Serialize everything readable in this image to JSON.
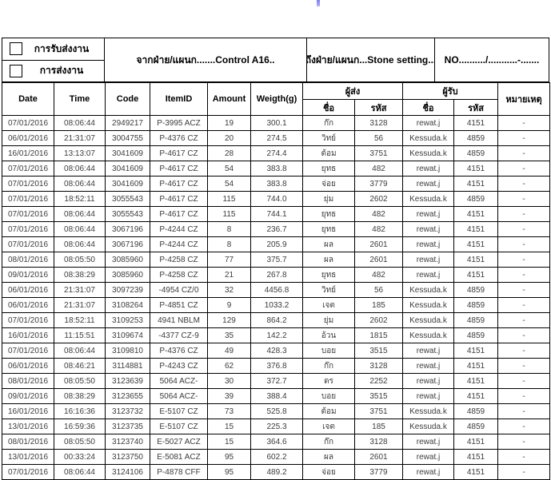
{
  "page": {
    "cursor_mark_color": "#7c7cf2"
  },
  "form_header": {
    "receive_checkbox_label": "การรับส่งงาน",
    "send_checkbox_label": "การส่งงาน",
    "from_department": "จากฝ่าย/แผนก.......Control A16..",
    "to_department": "ถึงฝ่าย/แผนก...Stone setting...",
    "doc_no": "NO........../...........-......."
  },
  "table": {
    "columns": {
      "date": "Date",
      "time": "Time",
      "code": "Code",
      "item_id": "ItemID",
      "amount": "Amount",
      "weight": "Weigth(g)",
      "sender_group": "ผู้ส่ง",
      "receiver_group": "ผู้รับ",
      "name_sub": "ชื่อ",
      "code_sub": "รหัส",
      "remark": "หมายเหตุ"
    },
    "rows": [
      [
        "07/01/2016",
        "08:06:44",
        "2949217",
        "P-3995 ACZ",
        "19",
        "300.1",
        "ก๊ก",
        "3128",
        "rewat.j",
        "4151",
        "-"
      ],
      [
        "06/01/2016",
        "21:31:07",
        "3004755",
        "P-4376 CZ",
        "20",
        "274.5",
        "วิทย์",
        "56",
        "Kessuda.k",
        "4859",
        "-"
      ],
      [
        "16/01/2016",
        "13:13:07",
        "3041609",
        "P-4617 CZ",
        "28",
        "274.4",
        "ต้อม",
        "3751",
        "Kessuda.k",
        "4859",
        "-"
      ],
      [
        "07/01/2016",
        "08:06:44",
        "3041609",
        "P-4617 CZ",
        "54",
        "383.8",
        "ยุทธ",
        "482",
        "rewat.j",
        "4151",
        "-"
      ],
      [
        "07/01/2016",
        "08:06:44",
        "3041609",
        "P-4617 CZ",
        "54",
        "383.8",
        "จ่อย",
        "3779",
        "rewat.j",
        "4151",
        "-"
      ],
      [
        "07/01/2016",
        "18:52:11",
        "3055543",
        "P-4617 CZ",
        "115",
        "744.0",
        "ยุ่ม",
        "2602",
        "Kessuda.k",
        "4859",
        "-"
      ],
      [
        "07/01/2016",
        "08:06:44",
        "3055543",
        "P-4617 CZ",
        "115",
        "744.1",
        "ยุทธ",
        "482",
        "rewat.j",
        "4151",
        "-"
      ],
      [
        "07/01/2016",
        "08:06:44",
        "3067196",
        "P-4244 CZ",
        "8",
        "236.7",
        "ยุทธ",
        "482",
        "rewat.j",
        "4151",
        "-"
      ],
      [
        "07/01/2016",
        "08:06:44",
        "3067196",
        "P-4244 CZ",
        "8",
        "205.9",
        "ผล",
        "2601",
        "rewat.j",
        "4151",
        "-"
      ],
      [
        "08/01/2016",
        "08:05:50",
        "3085960",
        "P-4258 CZ",
        "77",
        "375.7",
        "ผล",
        "2601",
        "rewat.j",
        "4151",
        "-"
      ],
      [
        "09/01/2016",
        "08:38:29",
        "3085960",
        "P-4258 CZ",
        "21",
        "267.8",
        "ยุทธ",
        "482",
        "rewat.j",
        "4151",
        "-"
      ],
      [
        "06/01/2016",
        "21:31:07",
        "3097239",
        "-4954 CZ/0",
        "32",
        "4456.8",
        "วิทย์",
        "56",
        "Kessuda.k",
        "4859",
        "-"
      ],
      [
        "06/01/2016",
        "21:31:07",
        "3108264",
        "P-4851 CZ",
        "9",
        "1033.2",
        "เจต",
        "185",
        "Kessuda.k",
        "4859",
        "-"
      ],
      [
        "07/01/2016",
        "18:52:11",
        "3109253",
        "4941 NBLM",
        "129",
        "864.2",
        "ยุ่ม",
        "2602",
        "Kessuda.k",
        "4859",
        "-"
      ],
      [
        "16/01/2016",
        "11:15:51",
        "3109674",
        "-4377 CZ-9",
        "35",
        "142.2",
        "อ้วน",
        "1815",
        "Kessuda.k",
        "4859",
        "-"
      ],
      [
        "07/01/2016",
        "08:06:44",
        "3109810",
        "P-4376 CZ",
        "49",
        "428.3",
        "บอย",
        "3515",
        "rewat.j",
        "4151",
        "-"
      ],
      [
        "06/01/2016",
        "08:46:21",
        "3114881",
        "P-4243 CZ",
        "62",
        "376.8",
        "ก๊ก",
        "3128",
        "rewat.j",
        "4151",
        "-"
      ],
      [
        "08/01/2016",
        "08:05:50",
        "3123639",
        "5064 ACZ-",
        "30",
        "372.7",
        "ดร",
        "2252",
        "rewat.j",
        "4151",
        "-"
      ],
      [
        "09/01/2016",
        "08:38:29",
        "3123655",
        "5064 ACZ-",
        "39",
        "388.4",
        "บอย",
        "3515",
        "rewat.j",
        "4151",
        "-"
      ],
      [
        "16/01/2016",
        "16:16:36",
        "3123732",
        "E-5107 CZ",
        "73",
        "525.8",
        "ต้อม",
        "3751",
        "Kessuda.k",
        "4859",
        "-"
      ],
      [
        "13/01/2016",
        "16:59:36",
        "3123735",
        "E-5107 CZ",
        "15",
        "225.3",
        "เจต",
        "185",
        "Kessuda.k",
        "4859",
        "-"
      ],
      [
        "08/01/2016",
        "08:05:50",
        "3123740",
        "E-5027 ACZ",
        "15",
        "364.6",
        "ก๊ก",
        "3128",
        "rewat.j",
        "4151",
        "-"
      ],
      [
        "13/01/2016",
        "00:33:24",
        "3123750",
        "E-5081 ACZ",
        "95",
        "602.2",
        "ผล",
        "2601",
        "rewat.j",
        "4151",
        "-"
      ],
      [
        "07/01/2016",
        "08:06:44",
        "3124106",
        "P-4878 CFF",
        "95",
        "489.2",
        "จ่อย",
        "3779",
        "rewat.j",
        "4151",
        "-"
      ]
    ]
  }
}
